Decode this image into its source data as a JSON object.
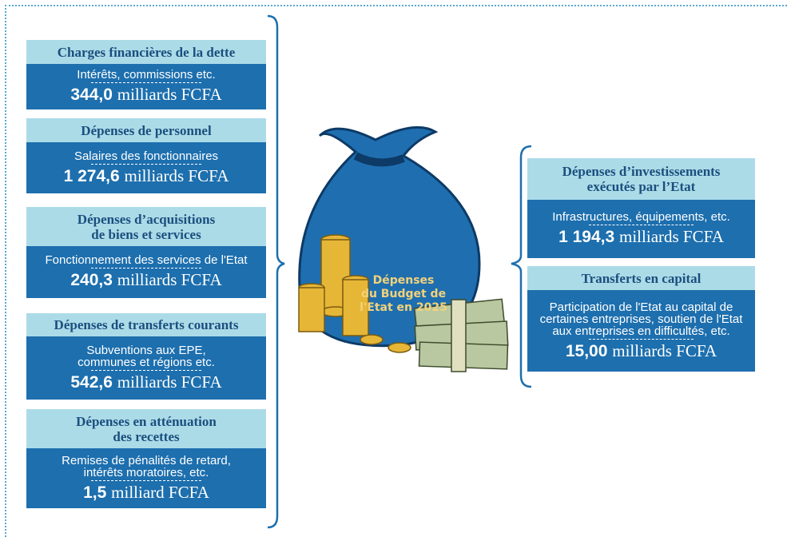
{
  "left_items": [
    {
      "title": [
        "Charges financières de la dette"
      ],
      "description": [
        "Intérêts, commissions etc."
      ],
      "amount": "344,0",
      "unit": "milliards FCFA"
    },
    {
      "title": [
        "Dépenses de personnel"
      ],
      "description": [
        "Salaires des fonctionnaires"
      ],
      "amount": "1 274,6",
      "unit": "milliards FCFA"
    },
    {
      "title": [
        "Dépenses d’acquisitions",
        "de biens et services"
      ],
      "description": [
        "Fonctionnement des services de l'Etat"
      ],
      "amount": "240,3",
      "unit": "milliards FCFA"
    },
    {
      "title": [
        "Dépenses de transferts courants"
      ],
      "description": [
        "Subventions aux EPE,",
        "communes et régions etc."
      ],
      "amount": "542,6",
      "unit": "milliards FCFA"
    },
    {
      "title": [
        "Dépenses en atténuation",
        "des recettes"
      ],
      "description": [
        "Remises de pénalités de retard,",
        "intérêts moratoires, etc."
      ],
      "amount": "1,5",
      "unit": "milliard FCFA"
    }
  ],
  "right_items": [
    {
      "title": [
        "Dépenses d’investissements",
        "exécutés par l’Etat"
      ],
      "description": [
        "Infrastructures, équipements, etc."
      ],
      "amount": "1 194,3",
      "unit": "milliards FCFA"
    },
    {
      "title": [
        "Transferts en capital"
      ],
      "description": [
        "Participation de l'Etat au capital de",
        "certaines entreprises, soutien de l'Etat",
        "aux entreprises en difficultés, etc."
      ],
      "amount": "15,00",
      "unit": "milliards FCFA"
    }
  ],
  "bag_label": [
    "Dépenses",
    "du Budget de",
    "l'Etat en 2025"
  ]
}
